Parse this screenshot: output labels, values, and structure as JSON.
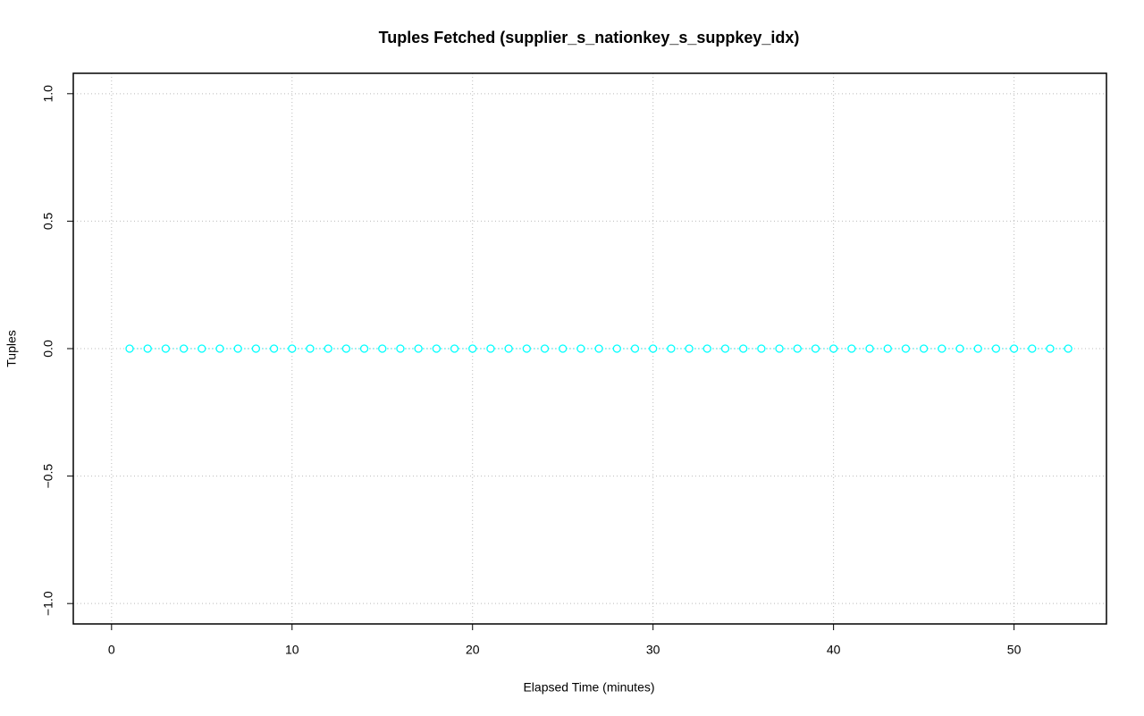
{
  "chart_data": {
    "type": "line",
    "title": "Tuples Fetched (supplier_s_nationkey_s_suppkey_idx)",
    "x_label": "Elapsed Time (minutes)",
    "y_label": "Tuples",
    "x": [
      1,
      2,
      3,
      4,
      5,
      6,
      7,
      8,
      9,
      10,
      11,
      12,
      13,
      14,
      15,
      16,
      17,
      18,
      19,
      20,
      21,
      22,
      23,
      24,
      25,
      26,
      27,
      28,
      29,
      30,
      31,
      32,
      33,
      34,
      35,
      36,
      37,
      38,
      39,
      40,
      41,
      42,
      43,
      44,
      45,
      46,
      47,
      48,
      49,
      50,
      51,
      52,
      53
    ],
    "values": [
      0,
      0,
      0,
      0,
      0,
      0,
      0,
      0,
      0,
      0,
      0,
      0,
      0,
      0,
      0,
      0,
      0,
      0,
      0,
      0,
      0,
      0,
      0,
      0,
      0,
      0,
      0,
      0,
      0,
      0,
      0,
      0,
      0,
      0,
      0,
      0,
      0,
      0,
      0,
      0,
      0,
      0,
      0,
      0,
      0,
      0,
      0,
      0,
      0,
      0,
      0,
      0,
      0
    ],
    "color": "#00ffff",
    "xlim": [
      -2.12,
      55.12
    ],
    "xticks": [
      0,
      10,
      20,
      30,
      40,
      50
    ],
    "ylim": [
      -1.08,
      1.08
    ],
    "yticks": [
      {
        "value": -1,
        "label": "−1.0"
      },
      {
        "value": -0.5,
        "label": "−0.5"
      },
      {
        "value": 0,
        "label": "0.0"
      },
      {
        "value": 0.5,
        "label": "0.5"
      },
      {
        "value": 1,
        "label": "1.0"
      }
    ],
    "grid": true
  }
}
